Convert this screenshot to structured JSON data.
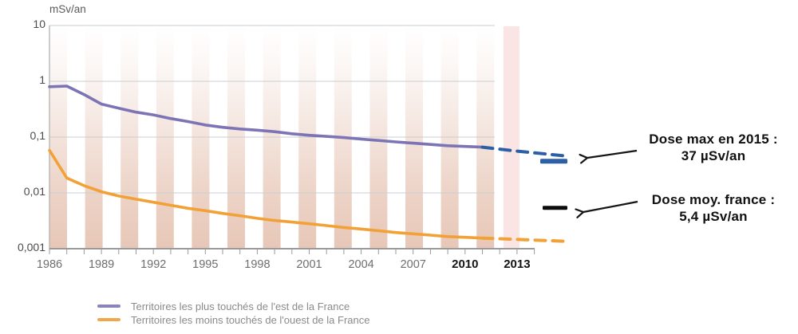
{
  "chart_data": {
    "type": "line",
    "unit_label": "mSv/an",
    "y_scale": "log",
    "ylim": [
      0.001,
      10
    ],
    "grid": true,
    "y_axis": {
      "ticks": [
        {
          "value": 10,
          "label": "10"
        },
        {
          "value": 1,
          "label": "1"
        },
        {
          "value": 0.1,
          "label": "0,1"
        },
        {
          "value": 0.01,
          "label": "0,01"
        },
        {
          "value": 0.001,
          "label": "0,001"
        }
      ]
    },
    "x_axis": {
      "tick_year_start": 1986,
      "tick_year_end": 2014,
      "labels": [
        {
          "year": 1986,
          "label": "1986",
          "bold": false
        },
        {
          "year": 1989,
          "label": "1989",
          "bold": false
        },
        {
          "year": 1992,
          "label": "1992",
          "bold": false
        },
        {
          "year": 1995,
          "label": "1995",
          "bold": false
        },
        {
          "year": 1998,
          "label": "1998",
          "bold": false
        },
        {
          "year": 2001,
          "label": "2001",
          "bold": false
        },
        {
          "year": 2004,
          "label": "2004",
          "bold": false
        },
        {
          "year": 2007,
          "label": "2007",
          "bold": false
        },
        {
          "year": 2010,
          "label": "2010",
          "bold": true
        },
        {
          "year": 2013,
          "label": "2013",
          "bold": true
        }
      ]
    },
    "series": [
      {
        "name": "Territoires les plus touchés de l'est de la France",
        "color": "#7c74b4",
        "style": "solid",
        "points": [
          [
            1986,
            0.8
          ],
          [
            1987,
            0.82
          ],
          [
            1988,
            0.58
          ],
          [
            1989,
            0.39
          ],
          [
            1990,
            0.33
          ],
          [
            1991,
            0.28
          ],
          [
            1992,
            0.25
          ],
          [
            1993,
            0.215
          ],
          [
            1994,
            0.19
          ],
          [
            1995,
            0.165
          ],
          [
            1996,
            0.15
          ],
          [
            1997,
            0.14
          ],
          [
            1998,
            0.133
          ],
          [
            1999,
            0.125
          ],
          [
            2000,
            0.115
          ],
          [
            2001,
            0.108
          ],
          [
            2002,
            0.103
          ],
          [
            2003,
            0.098
          ],
          [
            2004,
            0.092
          ],
          [
            2005,
            0.087
          ],
          [
            2006,
            0.082
          ],
          [
            2007,
            0.078
          ],
          [
            2008,
            0.074
          ],
          [
            2009,
            0.07
          ],
          [
            2010,
            0.068
          ],
          [
            2011,
            0.066
          ]
        ]
      },
      {
        "name": "extrapolation-est-pointilles",
        "color": "#2d5fa6",
        "style": "dashed",
        "points": [
          [
            2011,
            0.066
          ],
          [
            2013,
            0.056
          ],
          [
            2015.8,
            0.046
          ]
        ]
      },
      {
        "name": "Territoires les moins touchés de l'ouest de la France",
        "color": "#f2a136",
        "style": "solid",
        "points": [
          [
            1986,
            0.058
          ],
          [
            1987,
            0.0185
          ],
          [
            1988,
            0.0135
          ],
          [
            1989,
            0.0105
          ],
          [
            1990,
            0.0088
          ],
          [
            1991,
            0.0077
          ],
          [
            1992,
            0.0068
          ],
          [
            1993,
            0.006
          ],
          [
            1994,
            0.0053
          ],
          [
            1995,
            0.0048
          ],
          [
            1996,
            0.0043
          ],
          [
            1997,
            0.0039
          ],
          [
            1998,
            0.0035
          ],
          [
            1999,
            0.0032
          ],
          [
            2000,
            0.003
          ],
          [
            2001,
            0.0028
          ],
          [
            2002,
            0.0026
          ],
          [
            2003,
            0.0024
          ],
          [
            2004,
            0.00225
          ],
          [
            2005,
            0.0021
          ],
          [
            2006,
            0.00195
          ],
          [
            2007,
            0.00185
          ],
          [
            2008,
            0.00175
          ],
          [
            2009,
            0.00165
          ],
          [
            2010,
            0.0016
          ],
          [
            2011,
            0.00155
          ]
        ]
      },
      {
        "name": "extrapolation-ouest-pointilles",
        "color": "#f2a136",
        "style": "dashed",
        "points": [
          [
            2011,
            0.00155
          ],
          [
            2013,
            0.00147
          ],
          [
            2015.8,
            0.00136
          ]
        ]
      }
    ],
    "reference_markers": [
      {
        "name": "dose-max-2015",
        "value": 0.037,
        "color": "#2d5fa6"
      },
      {
        "name": "dose-moyenne-france",
        "value": 0.0054,
        "color": "#0c0c0c"
      }
    ],
    "highlight_band_year": 2013,
    "colors": {
      "stripe": "#e7c7b7",
      "highlight_band": "#fbe1e1",
      "grid": "#c9ccd4",
      "axis": "#9a9a9a",
      "tick_label": "#6e6e6e",
      "tick_label_bold": "#141414",
      "y_label": "#4c4c4c",
      "unit_label": "#5a5a5a",
      "arrow": "#151515"
    }
  },
  "annotations": {
    "dose_max": {
      "line1": "Dose max en 2015 :",
      "line2": "37 µSv/an"
    },
    "dose_moy": {
      "line1": "Dose moy. france :",
      "line2": "5,4 µSv/an"
    }
  },
  "legend": {
    "items": [
      {
        "label": "Territoires les plus touchés de l'est de la France",
        "color": "#8b84bb"
      },
      {
        "label": "Territoires les moins touchés de l'ouest de la France",
        "color": "#f0a94a"
      }
    ]
  }
}
